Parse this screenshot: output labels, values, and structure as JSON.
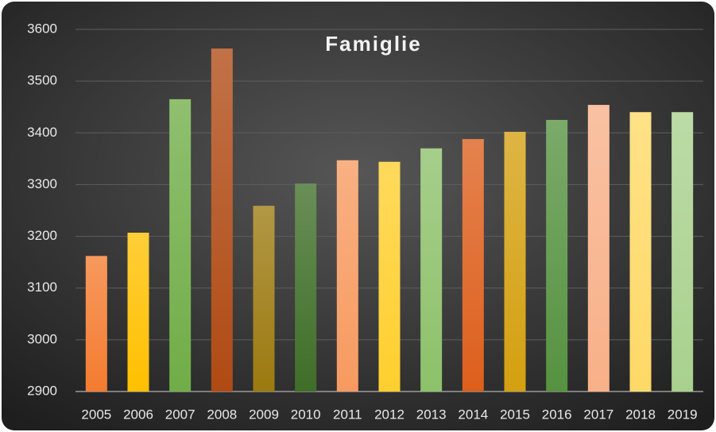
{
  "chart_data": {
    "type": "bar",
    "title": "Famiglie",
    "categories": [
      "2005",
      "2006",
      "2007",
      "2008",
      "2009",
      "2010",
      "2011",
      "2012",
      "2013",
      "2014",
      "2015",
      "2016",
      "2017",
      "2018",
      "2019"
    ],
    "values": [
      3162,
      3207,
      3465,
      3563,
      3259,
      3302,
      3347,
      3344,
      3370,
      3388,
      3402,
      3425,
      3454,
      3440,
      3440
    ],
    "colors": [
      "#f47c30",
      "#ffc000",
      "#70ad47",
      "#b04a14",
      "#9c7a10",
      "#3f6e28",
      "#f79a60",
      "#ffcf2e",
      "#8dc16a",
      "#dd5f1c",
      "#d4a010",
      "#569240",
      "#f8b088",
      "#ffd966",
      "#a9d18e"
    ],
    "ylim": [
      2900,
      3600
    ],
    "yticks": [
      2900,
      3000,
      3100,
      3200,
      3300,
      3400,
      3500,
      3600
    ],
    "grid": true
  }
}
